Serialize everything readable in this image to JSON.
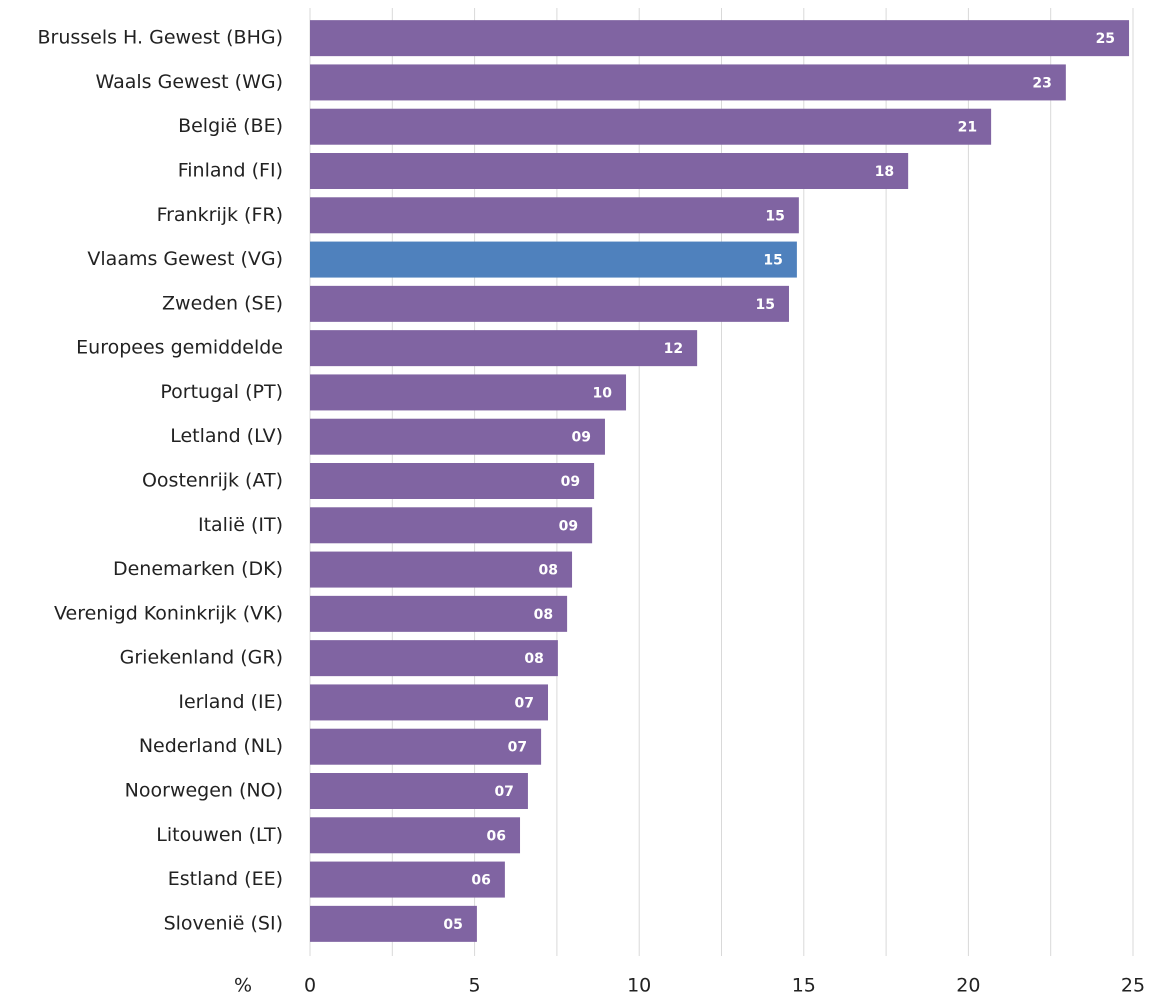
{
  "chart_data": {
    "type": "hbar",
    "categories": [
      "Brussels H. Gewest (BHG)",
      "Waals Gewest (WG)",
      "België (BE)",
      "Finland (FI)",
      "Frankrijk (FR)",
      "Vlaams Gewest (VG)",
      "Zweden (SE)",
      "Europees gemiddelde",
      "Portugal (PT)",
      "Letland (LV)",
      "Oostenrijk (AT)",
      "Italië (IT)",
      "Denemarken (DK)",
      "Verenigd Koninkrijk (VK)",
      "Griekenland (GR)",
      "Ierland (IE)",
      "Nederland (NL)",
      "Noorwegen (NO)",
      "Litouwen (LT)",
      "Estland (EE)",
      "Slovenië (SI)"
    ],
    "values": [
      24.88,
      22.96,
      20.69,
      18.17,
      14.85,
      14.79,
      14.55,
      11.76,
      9.6,
      8.96,
      8.63,
      8.57,
      7.96,
      7.81,
      7.53,
      7.23,
      7.02,
      6.62,
      6.38,
      5.92,
      5.07
    ],
    "value_labels": [
      "25",
      "23",
      "21",
      "18",
      "15",
      "15",
      "15",
      "12",
      "10",
      "09",
      "09",
      "09",
      "08",
      "08",
      "08",
      "07",
      "07",
      "07",
      "06",
      "06",
      "05"
    ],
    "colors": [
      "#8064a2",
      "#8064a2",
      "#8064a2",
      "#8064a2",
      "#8064a2",
      "#4f81bd",
      "#8064a2",
      "#8064a2",
      "#8064a2",
      "#8064a2",
      "#8064a2",
      "#8064a2",
      "#8064a2",
      "#8064a2",
      "#8064a2",
      "#8064a2",
      "#8064a2",
      "#8064a2",
      "#8064a2",
      "#8064a2",
      "#8064a2"
    ],
    "xlabel": "%",
    "xlim": [
      0,
      25
    ],
    "xticks": [
      0,
      5,
      10,
      15,
      20,
      25
    ],
    "xgrid": [
      2.5,
      5,
      7.5,
      10,
      12.5,
      15,
      17.5,
      20,
      22.5,
      25
    ],
    "grid": true
  }
}
